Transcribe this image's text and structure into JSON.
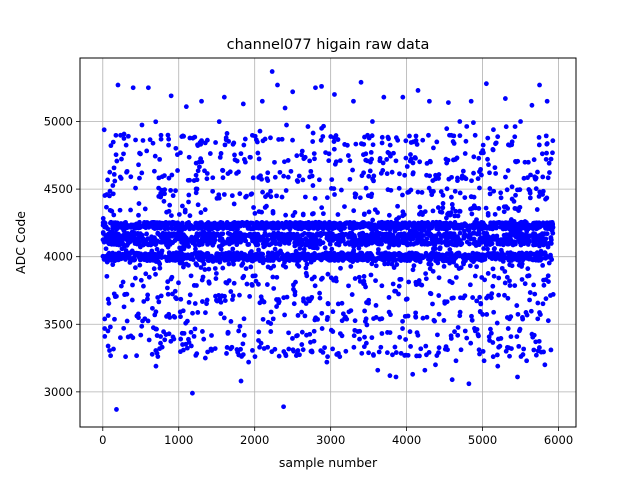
{
  "chart_data": {
    "type": "scatter",
    "title": "channel077 higain raw data",
    "xlabel": "sample number",
    "ylabel": "ADC Code",
    "xlim": [
      -300,
      6230
    ],
    "ylim": [
      2740,
      5470
    ],
    "x_ticks": [
      0,
      1000,
      2000,
      3000,
      4000,
      5000,
      6000
    ],
    "y_ticks": [
      3000,
      3500,
      4000,
      4500,
      5000
    ],
    "x_tick_labels": [
      "0",
      "1000",
      "2000",
      "3000",
      "4000",
      "5000",
      "6000"
    ],
    "y_tick_labels": [
      "3000",
      "3500",
      "4000",
      "4500",
      "5000"
    ],
    "grid": true,
    "marker_color": "#0000ff",
    "sample_range": [
      0,
      5930
    ],
    "core_bands_adc": [
      {
        "center": 4000,
        "half_width": 30
      },
      {
        "center": 4130,
        "half_width": 45
      },
      {
        "center": 4230,
        "half_width": 25
      }
    ],
    "series": [
      {
        "values_note": "",
        "x": [
          200,
          400,
          600,
          900,
          1100,
          1300,
          1600,
          1850,
          2100,
          2230,
          2300,
          2400,
          2500,
          2800,
          2880,
          3050,
          3300,
          3400,
          3550,
          3700,
          3950,
          4150,
          4300,
          4550,
          4700,
          4850,
          5050,
          5300,
          5500,
          5650,
          5750,
          5850,
          180,
          300,
          700,
          1050,
          1350,
          1700,
          1820,
          2170,
          2380,
          2560,
          2950,
          3200,
          3380,
          3620,
          3860,
          4080,
          4240,
          4420,
          4600,
          4820,
          5020,
          5200,
          5460,
          5580,
          5900,
          100,
          500,
          760,
          1180,
          1480,
          1920,
          2050,
          2620,
          2740,
          3120,
          3470,
          3780,
          4020,
          4380,
          4650,
          4960,
          5140,
          5380,
          5700,
          5820
        ],
        "y": [
          5270,
          5250,
          5250,
          5190,
          5110,
          5150,
          5180,
          5130,
          5150,
          5370,
          5270,
          5100,
          5220,
          5250,
          5260,
          5200,
          5150,
          5290,
          5000,
          5180,
          5180,
          5230,
          5150,
          5140,
          5000,
          5150,
          5280,
          5170,
          5000,
          5120,
          5270,
          5150,
          2870,
          3260,
          3190,
          3350,
          3250,
          3330,
          3080,
          3330,
          2890,
          3280,
          3220,
          3300,
          3390,
          3160,
          3110,
          3130,
          3160,
          3290,
          3090,
          3060,
          3230,
          3190,
          3110,
          3230,
          3310,
          3480,
          3420,
          3360,
          2990,
          3320,
          3220,
          3380,
          3350,
          3300,
          3260,
          3360,
          3120,
          3270,
          3200,
          3230,
          3280,
          3260,
          3320,
          3370,
          3200
        ]
      }
    ]
  }
}
